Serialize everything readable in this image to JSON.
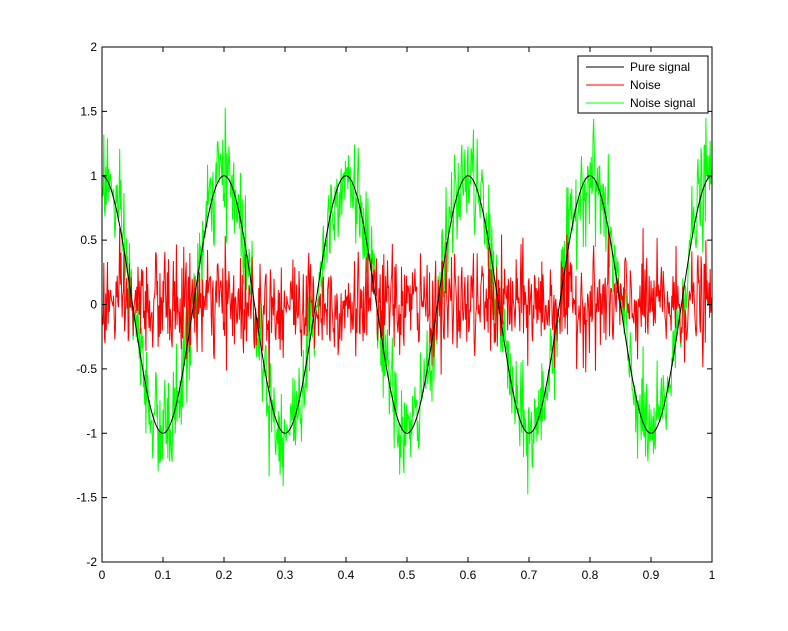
{
  "chart_data": {
    "type": "line",
    "title": "",
    "xlabel": "",
    "ylabel": "",
    "xlim": [
      0,
      1
    ],
    "ylim": [
      -2,
      2
    ],
    "grid": false,
    "legend_position": "top-right",
    "x_ticks": [
      "0",
      "0.1",
      "0.2",
      "0.3",
      "0.4",
      "0.5",
      "0.6",
      "0.7",
      "0.8",
      "0.9",
      "1"
    ],
    "y_ticks": [
      "-2",
      "-1.5",
      "-1",
      "-0.5",
      "0",
      "0.5",
      "1",
      "1.5",
      "2"
    ],
    "sample_count": 1001,
    "series": [
      {
        "name": "Pure signal",
        "color": "#000000",
        "form": "cos(2*pi*5*x)",
        "amplitude": 1,
        "frequency": 5
      },
      {
        "name": "Noise",
        "color": "#ff0000",
        "form": "random",
        "std": 0.2,
        "approx_range": [
          -0.65,
          0.6
        ]
      },
      {
        "name": "Noise signal",
        "color": "#00ff00",
        "form": "Pure signal + Noise",
        "approx_range": [
          -1.72,
          1.55
        ]
      }
    ]
  }
}
